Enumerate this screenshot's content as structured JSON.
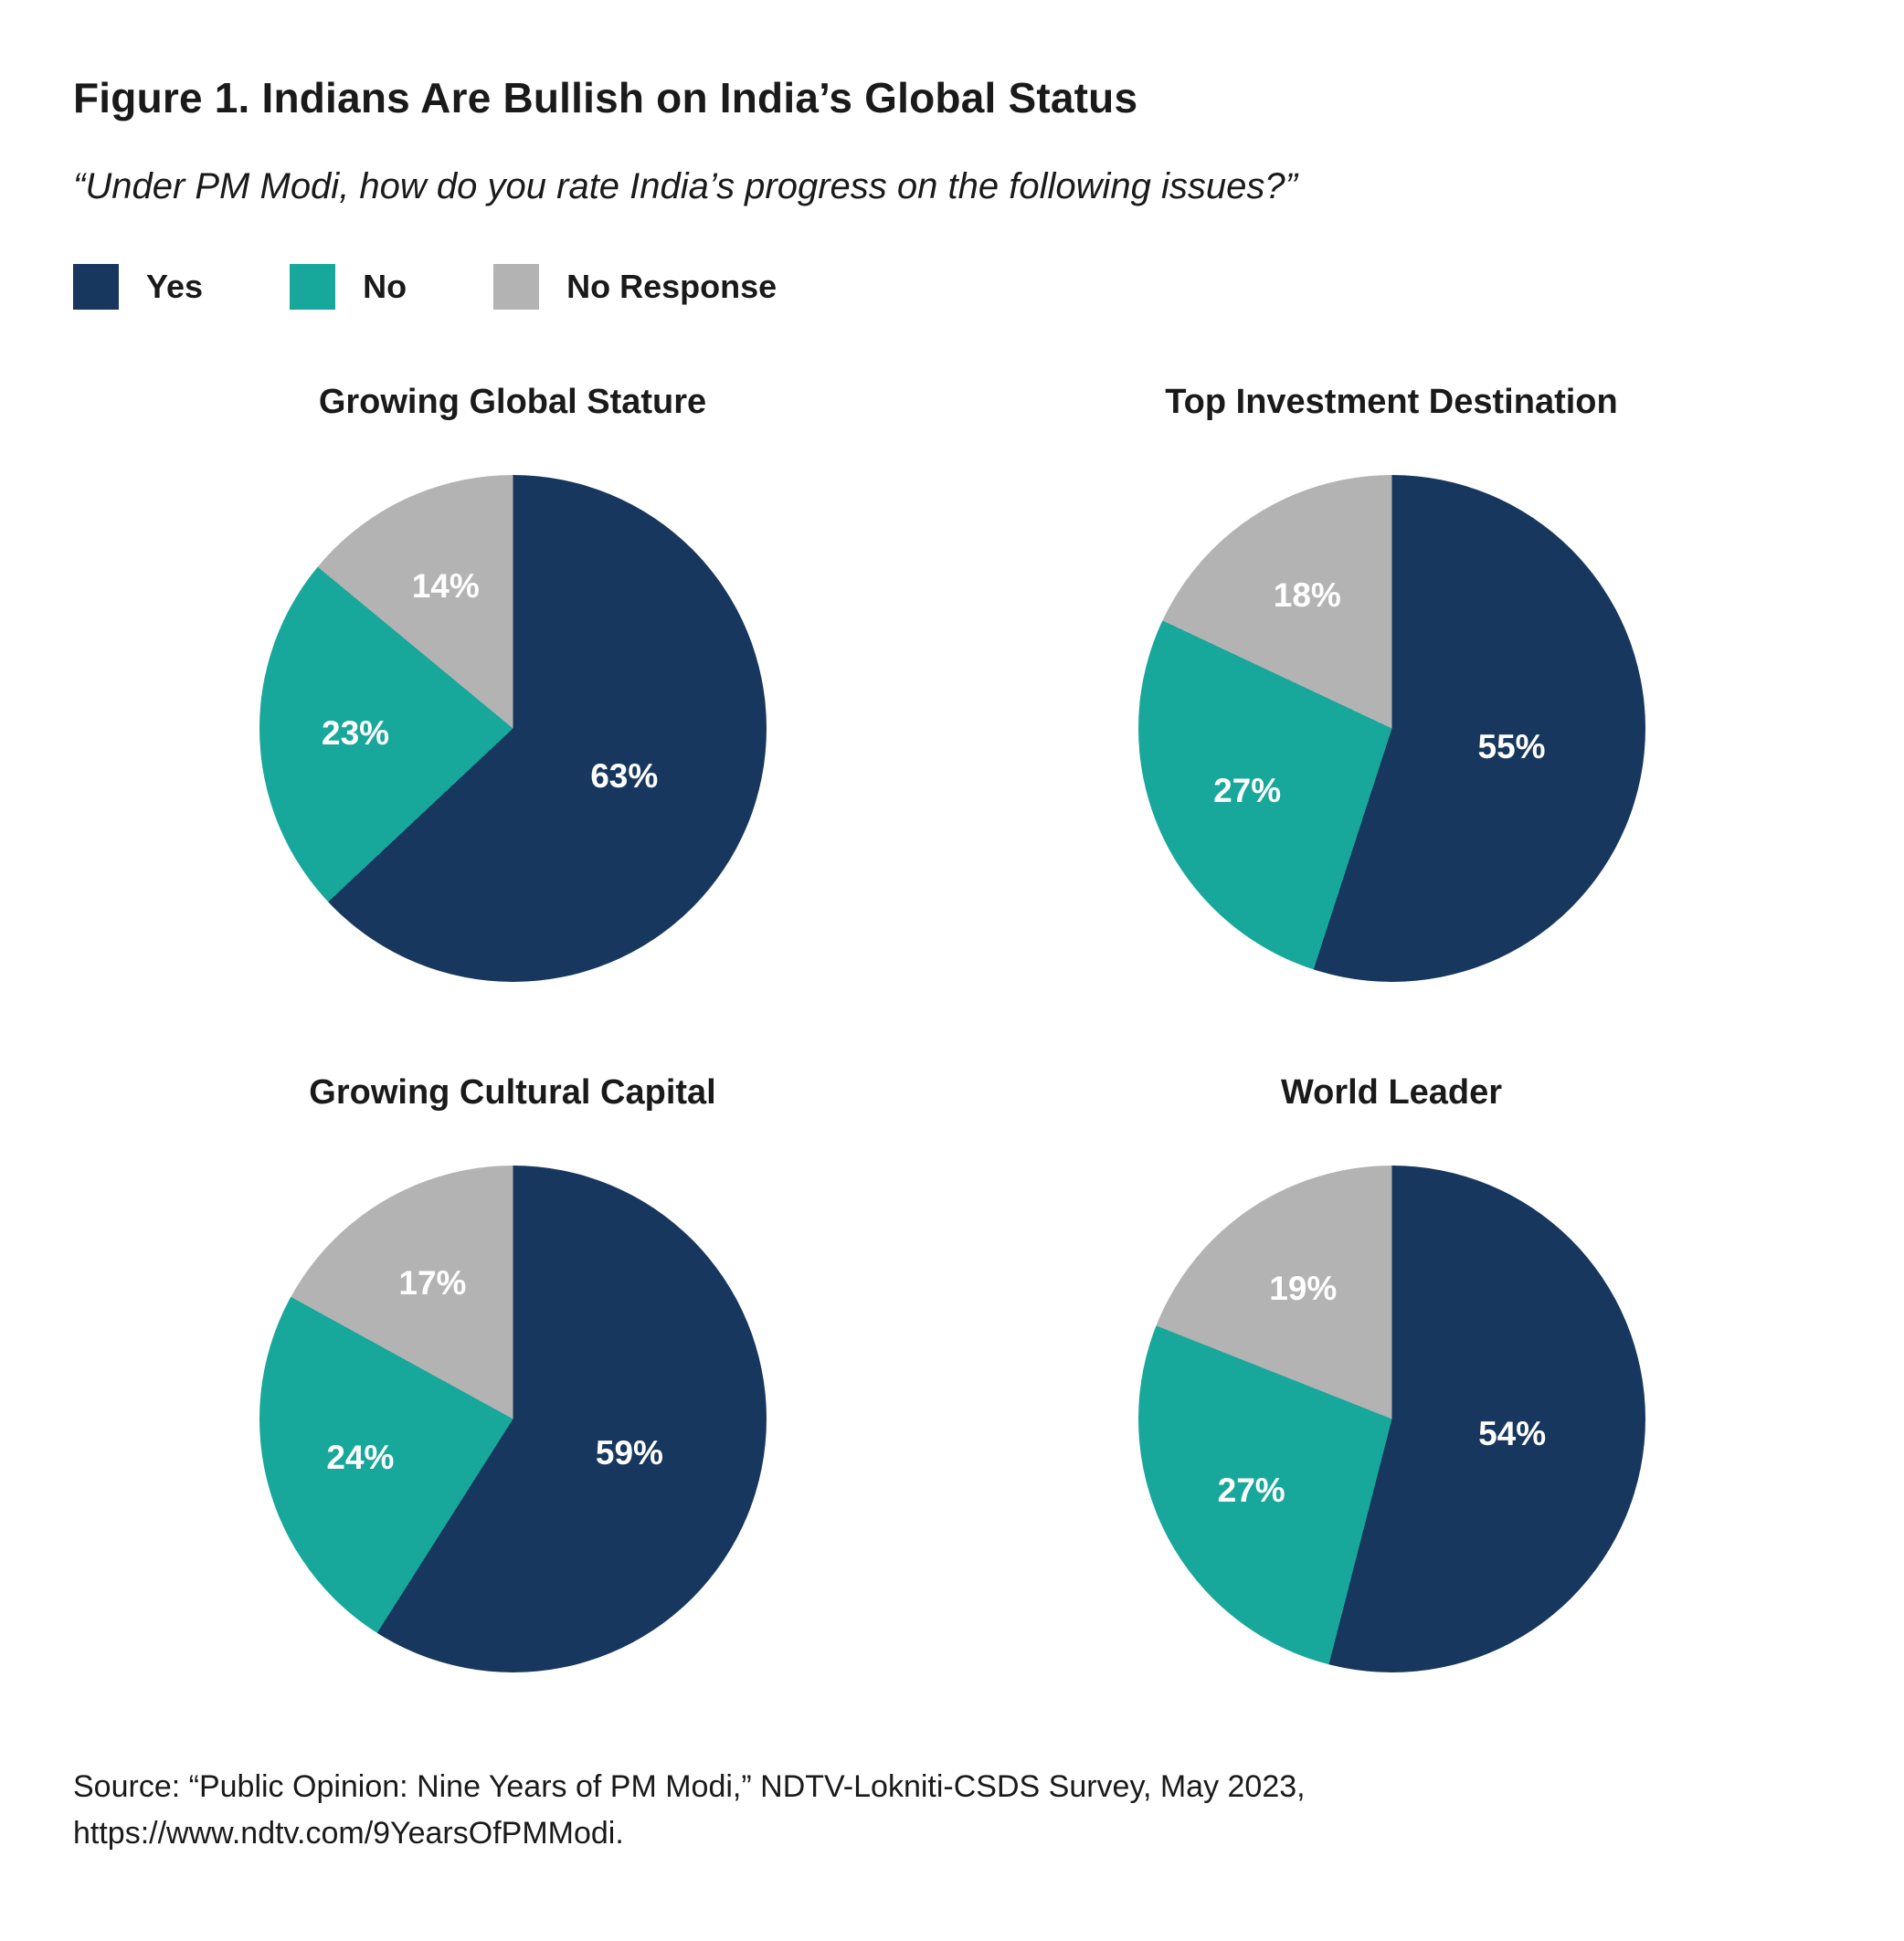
{
  "figure": {
    "title": "Figure 1. Indians Are Bullish on India’s Global Status",
    "subtitle": "“Under PM Modi, how do you rate India’s progress on the following issues?”",
    "source_line1": "Source: “Public Opinion: Nine Years of PM Modi,” NDTV-Lokniti-CSDS Survey, May 2023,",
    "source_line2": "https://www.ndtv.com/9YearsOfPMModi."
  },
  "legend": [
    {
      "label": "Yes",
      "color": "#17375e"
    },
    {
      "label": "No",
      "color": "#18a79b"
    },
    {
      "label": "No Response",
      "color": "#b3b3b3"
    }
  ],
  "chart_data": [
    {
      "type": "pie",
      "title": "Growing Global Stature",
      "labels": [
        "Yes",
        "No",
        "No Response"
      ],
      "values": [
        63,
        23,
        14
      ],
      "colors": [
        "#17375e",
        "#18a79b",
        "#b3b3b3"
      ],
      "start_angle_deg": 0,
      "direction": "clockwise",
      "value_suffix": "%"
    },
    {
      "type": "pie",
      "title": "Top Investment Destination",
      "labels": [
        "Yes",
        "No",
        "No Response"
      ],
      "values": [
        55,
        27,
        18
      ],
      "colors": [
        "#17375e",
        "#18a79b",
        "#b3b3b3"
      ],
      "start_angle_deg": 0,
      "direction": "clockwise",
      "value_suffix": "%"
    },
    {
      "type": "pie",
      "title": "Growing Cultural Capital",
      "labels": [
        "Yes",
        "No",
        "No Response"
      ],
      "values": [
        59,
        24,
        17
      ],
      "colors": [
        "#17375e",
        "#18a79b",
        "#b3b3b3"
      ],
      "start_angle_deg": 0,
      "direction": "clockwise",
      "value_suffix": "%"
    },
    {
      "type": "pie",
      "title": "World Leader",
      "labels": [
        "Yes",
        "No",
        "No Response"
      ],
      "values": [
        54,
        27,
        19
      ],
      "colors": [
        "#17375e",
        "#18a79b",
        "#b3b3b3"
      ],
      "start_angle_deg": 0,
      "direction": "clockwise",
      "value_suffix": "%"
    }
  ]
}
